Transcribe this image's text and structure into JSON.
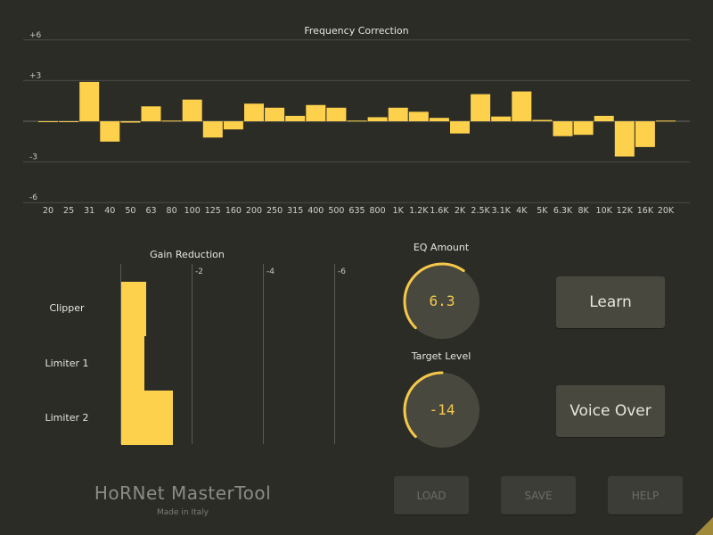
{
  "app": {
    "name": "HoRNet MasterTool",
    "subtitle": "Made in Italy"
  },
  "colors": {
    "background": "#2c2c27",
    "accent": "#fdd14b",
    "button": "#48483f"
  },
  "chart_data": {
    "type": "bar",
    "title": "Frequency Correction",
    "xlabel": "",
    "ylabel": "",
    "categories": [
      "20",
      "25",
      "31",
      "40",
      "50",
      "63",
      "80",
      "100",
      "125",
      "160",
      "200",
      "250",
      "315",
      "400",
      "500",
      "635",
      "800",
      "1K",
      "1.2K",
      "1.6K",
      "2K",
      "2.5K",
      "3.1K",
      "4K",
      "5K",
      "6.3K",
      "8K",
      "10K",
      "12K",
      "16K",
      "20K"
    ],
    "values": [
      -0.05,
      -0.05,
      2.9,
      -1.5,
      -0.1,
      1.1,
      0.05,
      1.6,
      -1.2,
      -0.6,
      1.3,
      1.0,
      0.4,
      1.2,
      1.0,
      0.05,
      0.3,
      1.0,
      0.7,
      0.25,
      -0.9,
      2.0,
      0.35,
      2.2,
      0.1,
      -1.1,
      -1.0,
      0.4,
      -2.6,
      -1.9,
      0.05
    ],
    "ylim": [
      -6,
      6
    ],
    "yticks": [
      "+6",
      "+3",
      "-3",
      "-6"
    ],
    "grid": true,
    "legend": "none"
  },
  "gain_reduction": {
    "title": "Gain Reduction",
    "ticks": [
      "-2",
      "-4",
      "-6"
    ],
    "rows": [
      {
        "label": "Clipper",
        "value": 0.7
      },
      {
        "label": "Limiter 1",
        "value": 0.65
      },
      {
        "label": "Limiter 2",
        "value": 1.45
      }
    ],
    "max": 6
  },
  "eq_amount": {
    "title": "EQ Amount",
    "value": "6.3",
    "fraction": 0.63
  },
  "target_level": {
    "title": "Target Level",
    "value": "-14",
    "fraction": 0.5
  },
  "buttons": {
    "learn": "Learn",
    "voice_over": "Voice Over",
    "load": "LOAD",
    "save": "SAVE",
    "help": "HELP"
  }
}
